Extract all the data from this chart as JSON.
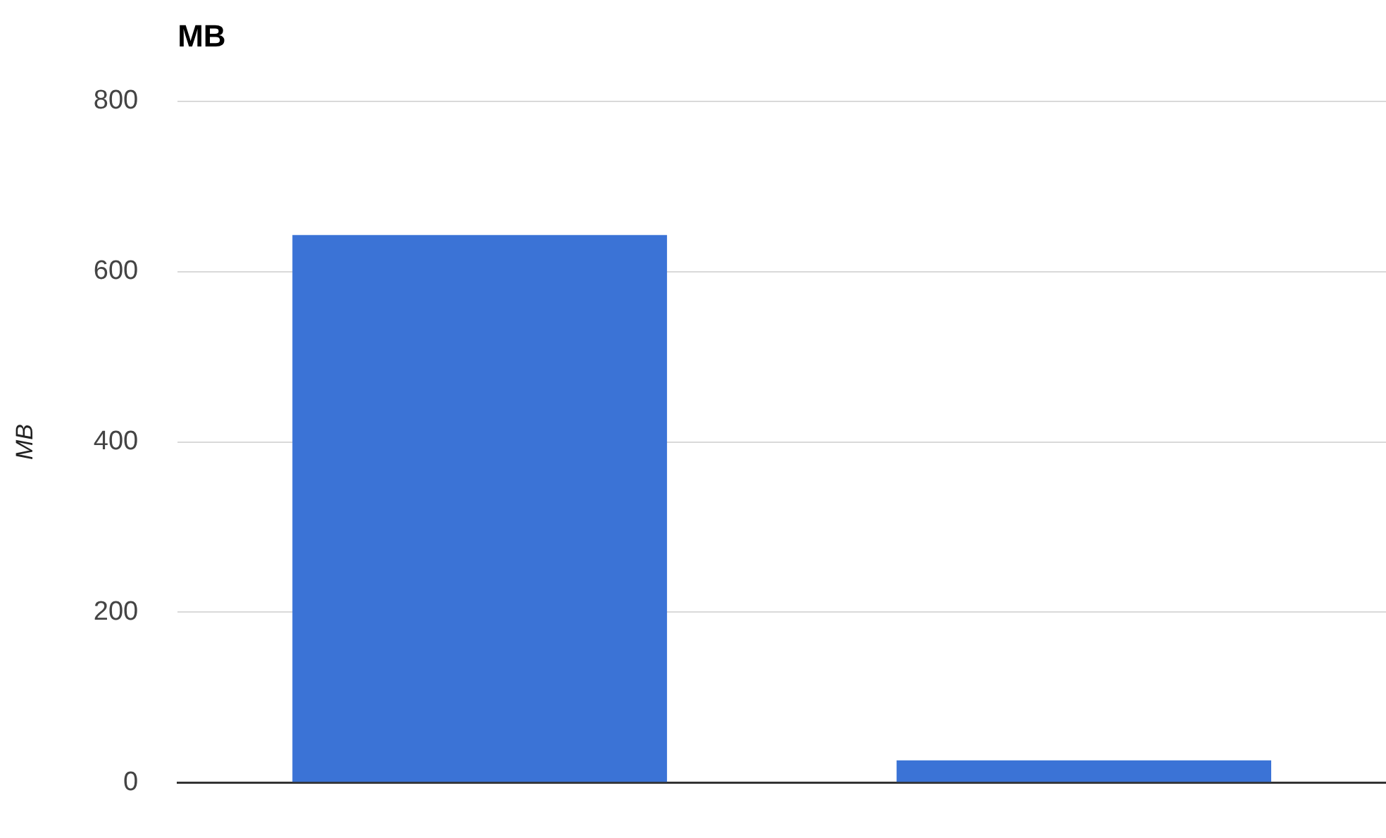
{
  "chart_data": {
    "type": "bar",
    "title": "MB",
    "ylabel": "MB",
    "categories": [
      null,
      null
    ],
    "values": [
      643,
      26
    ],
    "color": "#3b73d6",
    "ylim": [
      0,
      800
    ],
    "yticks": [
      0,
      200,
      400,
      600,
      800
    ],
    "grid": "y",
    "legend": false
  }
}
